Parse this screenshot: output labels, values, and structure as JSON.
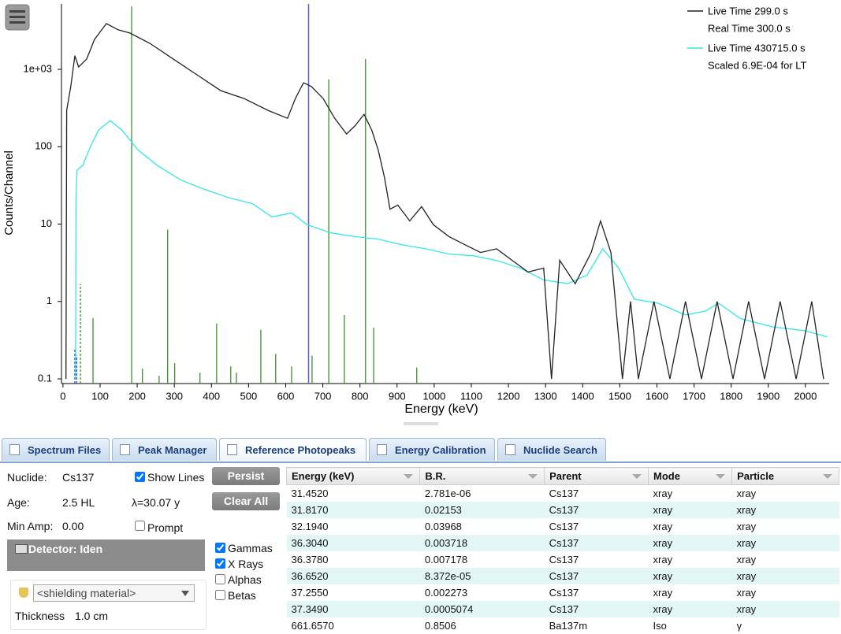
{
  "chart_data": {
    "type": "line",
    "yscale": "log",
    "xlabel": "Energy (keV)",
    "ylabel": "Counts/Channel",
    "xlim": [
      -4,
      2064
    ],
    "ylim": [
      0.087,
      7000
    ],
    "xticks": [
      0,
      100,
      200,
      300,
      400,
      500,
      600,
      700,
      800,
      900,
      1000,
      1100,
      1200,
      1300,
      1400,
      1500,
      1600,
      1700,
      1800,
      1900,
      2000
    ],
    "yticks": [
      0.1,
      1,
      10,
      100,
      {
        "value": 1000,
        "label": "1e+03"
      }
    ],
    "legend": "upper right",
    "series": [
      {
        "name": "Live Time 299.0 s",
        "detail": "Real Time 300.0 s",
        "color": "#222222",
        "x": [
          8,
          10,
          21,
          32,
          42,
          64,
          85,
          117,
          149,
          180,
          234,
          297,
          361,
          425,
          488,
          552,
          605,
          626,
          648,
          669,
          701,
          732,
          764,
          786,
          811,
          832,
          849,
          866,
          881,
          902,
          934,
          966,
          998,
          1040,
          1083,
          1125,
          1168,
          1210,
          1253,
          1295,
          1316,
          1338,
          1380,
          1423,
          1448,
          1476,
          1507,
          1529,
          1550,
          1592,
          1635,
          1677,
          1720,
          1762,
          1805,
          1847,
          1890,
          1932,
          1975,
          2017,
          2049
        ],
        "values": [
          0.1,
          295,
          600,
          1500,
          1070,
          1360,
          2440,
          3900,
          3240,
          2950,
          2170,
          1360,
          850,
          530,
          420,
          295,
          233,
          420,
          670,
          600,
          420,
          233,
          146,
          185,
          262,
          163,
          91,
          40,
          15.6,
          17.6,
          11,
          16.8,
          9.8,
          6.9,
          5.4,
          4.3,
          4.8,
          3.4,
          2.4,
          2.7,
          0.1,
          3.4,
          1.7,
          4.3,
          11,
          4.3,
          0.1,
          1,
          0.1,
          1,
          0.1,
          1,
          0.1,
          1,
          0.1,
          1,
          0.1,
          1,
          0.1,
          1,
          0.1
        ]
      },
      {
        "name": "Live Time 430715.0 s",
        "detail": "Scaled 6.9E-04 for LT",
        "color": "#33e6ee",
        "x": [
          34,
          35,
          38,
          53,
          74,
          96,
          127,
          159,
          202,
          255,
          318,
          382,
          446,
          510,
          563,
          616,
          658,
          722,
          786,
          849,
          913,
          977,
          1040,
          1104,
          1168,
          1231,
          1295,
          1359,
          1412,
          1454,
          1497,
          1539,
          1603,
          1677,
          1730,
          1766,
          1826,
          1911,
          1996,
          2059
        ],
        "values": [
          0.1,
          22,
          50,
          57,
          100,
          164,
          217,
          164,
          91,
          57,
          37,
          28,
          22,
          18.4,
          12.4,
          13.9,
          9.8,
          7.7,
          6.9,
          6.4,
          5.4,
          4.8,
          4.1,
          3.9,
          3.4,
          2.7,
          1.9,
          1.7,
          2.2,
          4.8,
          2.7,
          1.07,
          0.95,
          0.67,
          0.75,
          0.95,
          0.6,
          0.47,
          0.42,
          0.35
        ]
      }
    ],
    "reference_lines": {
      "color": "#3f8f2f",
      "energies": [
        81,
        185,
        214,
        259,
        282,
        301,
        369,
        414,
        452,
        467,
        533,
        573,
        616,
        671,
        716,
        758,
        815,
        837,
        953
      ],
      "values": [
        0.61,
        6500,
        0.136,
        0.11,
        8.5,
        0.16,
        0.12,
        0.52,
        0.145,
        0.12,
        0.43,
        0.21,
        0.145,
        0.2,
        740,
        0.67,
        1360,
        0.46,
        0.14
      ]
    },
    "dashed_lines": {
      "energies": [
        32,
        37,
        47
      ],
      "values": [
        0.24,
        0.2,
        1.68
      ],
      "colors": [
        "#2f4fd8",
        "#2f4fd8",
        "#3f8f2f"
      ]
    },
    "marker": {
      "energy": 661.657,
      "color": "#5a5ae0"
    }
  },
  "tabs": {
    "items": [
      "Spectrum Files",
      "Peak Manager",
      "Reference Photopeaks",
      "Energy Calibration",
      "Nuclide Search"
    ],
    "active": 2
  },
  "controls": {
    "nuclide_label": "Nuclide:",
    "nuclide": "Cs137",
    "age_label": "Age:",
    "age": "2.5 HL",
    "half_life": "λ=30.07 y",
    "min_amp_label": "Min Amp:",
    "min_amp": "0.00",
    "show_lines": {
      "label": "Show Lines",
      "checked": true
    },
    "prompt": {
      "label": "Prompt",
      "checked": false
    },
    "persist": "Persist",
    "clear_all": "Clear All",
    "detector": "Detector: Iden",
    "particles": [
      {
        "label": "Gammas",
        "checked": true
      },
      {
        "label": "X Rays",
        "checked": true
      },
      {
        "label": "Alphas",
        "checked": false
      },
      {
        "label": "Betas",
        "checked": false
      }
    ],
    "shielding": "<shielding material>",
    "thickness_label": "Thickness",
    "thickness": "1.0 cm"
  },
  "table": {
    "columns": [
      "Energy (keV)",
      "B.R.",
      "Parent",
      "Mode",
      "Particle"
    ],
    "rows": [
      [
        "31.4520",
        "2.781e-06",
        "Cs137",
        "xray",
        "xray"
      ],
      [
        "31.8170",
        "0.02153",
        "Cs137",
        "xray",
        "xray"
      ],
      [
        "32.1940",
        "0.03968",
        "Cs137",
        "xray",
        "xray"
      ],
      [
        "36.3040",
        "0.003718",
        "Cs137",
        "xray",
        "xray"
      ],
      [
        "36.3780",
        "0.007178",
        "Cs137",
        "xray",
        "xray"
      ],
      [
        "36.6520",
        "8.372e-05",
        "Cs137",
        "xray",
        "xray"
      ],
      [
        "37.2550",
        "0.002273",
        "Cs137",
        "xray",
        "xray"
      ],
      [
        "37.3490",
        "0.0005074",
        "Cs137",
        "xray",
        "xray"
      ],
      [
        "661.6570",
        "0.8506",
        "Ba137m",
        "Iso",
        "γ"
      ]
    ]
  }
}
